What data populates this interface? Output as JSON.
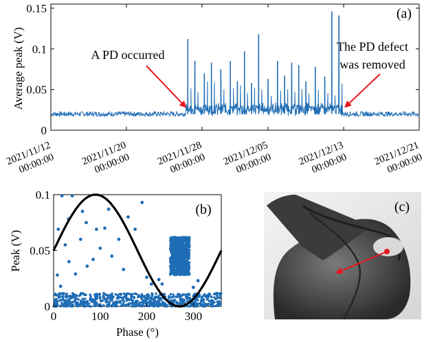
{
  "chart_data": [
    {
      "panel": "(a)",
      "type": "line",
      "ylabel": "Average peak  (V)",
      "yticks": [
        "0",
        "0.05",
        "0.1",
        "0.15"
      ],
      "ylim": [
        0,
        0.155
      ],
      "xlim": [
        "2021/11/12 00:00:00",
        "2021/12/21 00:00:00"
      ],
      "xticks": [
        {
          "date": "2021/11/12",
          "time": "00:00:00"
        },
        {
          "date": "2021/11/20",
          "time": "00:00:00"
        },
        {
          "date": "2021/11/28",
          "time": "00:00:00"
        },
        {
          "date": "2021/12/05",
          "time": "00:00:00"
        },
        {
          "date": "2021/12/13",
          "time": "00:00:00"
        },
        {
          "date": "2021/12/21",
          "time": "00:00:00"
        }
      ],
      "baseline": 0.02,
      "spikes": [
        {
          "date": "2021/11/26 12:00",
          "value": 0.112
        },
        {
          "date": "2021/11/27 06:00",
          "value": 0.085
        },
        {
          "date": "2021/11/28 06:00",
          "value": 0.07
        },
        {
          "date": "2021/11/29 00:00",
          "value": 0.083
        },
        {
          "date": "2021/11/30 00:00",
          "value": 0.075
        },
        {
          "date": "2021/12/01 00:00",
          "value": 0.085
        },
        {
          "date": "2021/12/01 18:00",
          "value": 0.06
        },
        {
          "date": "2021/12/02 12:00",
          "value": 0.097
        },
        {
          "date": "2021/12/03 06:00",
          "value": 0.058
        },
        {
          "date": "2021/12/04 00:00",
          "value": 0.118
        },
        {
          "date": "2021/12/05 00:00",
          "value": 0.063
        },
        {
          "date": "2021/12/06 00:00",
          "value": 0.085
        },
        {
          "date": "2021/12/06 18:00",
          "value": 0.067
        },
        {
          "date": "2021/12/07 12:00",
          "value": 0.083
        },
        {
          "date": "2021/12/08 06:00",
          "value": 0.08
        },
        {
          "date": "2021/12/09 00:00",
          "value": 0.06
        },
        {
          "date": "2021/12/10 00:00",
          "value": 0.078
        },
        {
          "date": "2021/12/11 00:00",
          "value": 0.066
        },
        {
          "date": "2021/12/11 18:00",
          "value": 0.146
        },
        {
          "date": "2021/12/12 12:00",
          "value": 0.141
        }
      ],
      "line_color": "#1f6db5",
      "annotations": [
        {
          "text": "A PD occurred",
          "arrow_date": "2021/11/26 06:00",
          "arrow_value": 0.022
        },
        {
          "text": "The PD defect",
          "arrow_date": null,
          "arrow_value": null
        },
        {
          "text": "was removed",
          "arrow_date": "2021/12/12 18:00",
          "arrow_value": 0.022
        }
      ],
      "arrow_color": "#e8161b"
    },
    {
      "panel": "(b)",
      "type": "scatter",
      "xlabel": "Phase (°)",
      "ylabel": "Peak (V)",
      "xlim": [
        0,
        360
      ],
      "ylim": [
        0,
        0.1
      ],
      "xticks": [
        "0",
        "100",
        "200",
        "300"
      ],
      "yticks": [
        "0",
        "0.05",
        "0.1"
      ],
      "sine": {
        "amplitude": 0.05,
        "offset": 0.05,
        "peak_phase": 90,
        "color": "#000000"
      },
      "point_color": "#1f6db5",
      "scattered_points": [
        {
          "x": 18,
          "y": 0.099
        },
        {
          "x": 40,
          "y": 0.099
        },
        {
          "x": 62,
          "y": 0.085
        },
        {
          "x": 118,
          "y": 0.087
        },
        {
          "x": 190,
          "y": 0.093
        },
        {
          "x": 32,
          "y": 0.078
        },
        {
          "x": 70,
          "y": 0.075
        },
        {
          "x": 10,
          "y": 0.069
        },
        {
          "x": 140,
          "y": 0.06
        },
        {
          "x": 25,
          "y": 0.055
        },
        {
          "x": 58,
          "y": 0.06
        },
        {
          "x": 92,
          "y": 0.069
        },
        {
          "x": 110,
          "y": 0.07
        },
        {
          "x": 175,
          "y": 0.069
        },
        {
          "x": 33,
          "y": 0.04
        },
        {
          "x": 47,
          "y": 0.029
        },
        {
          "x": 8,
          "y": 0.028
        },
        {
          "x": 85,
          "y": 0.042
        },
        {
          "x": 150,
          "y": 0.033
        },
        {
          "x": 200,
          "y": 0.026
        },
        {
          "x": 210,
          "y": 0.02
        },
        {
          "x": 226,
          "y": 0.024
        },
        {
          "x": 310,
          "y": 0.023
        },
        {
          "x": 300,
          "y": 0.017
        },
        {
          "x": 125,
          "y": 0.045
        },
        {
          "x": 160,
          "y": 0.08
        },
        {
          "x": 100,
          "y": 0.052
        },
        {
          "x": 233,
          "y": 0.02
        },
        {
          "x": 15,
          "y": 0.018
        },
        {
          "x": 72,
          "y": 0.036
        }
      ],
      "noise_band": [
        0,
        0.012
      ],
      "cluster": {
        "x_range": [
          250,
          292
        ],
        "y_range": [
          0.028,
          0.062
        ]
      }
    },
    {
      "panel": "(c)",
      "type": "photo",
      "arrow_color": "#e8161b"
    }
  ]
}
